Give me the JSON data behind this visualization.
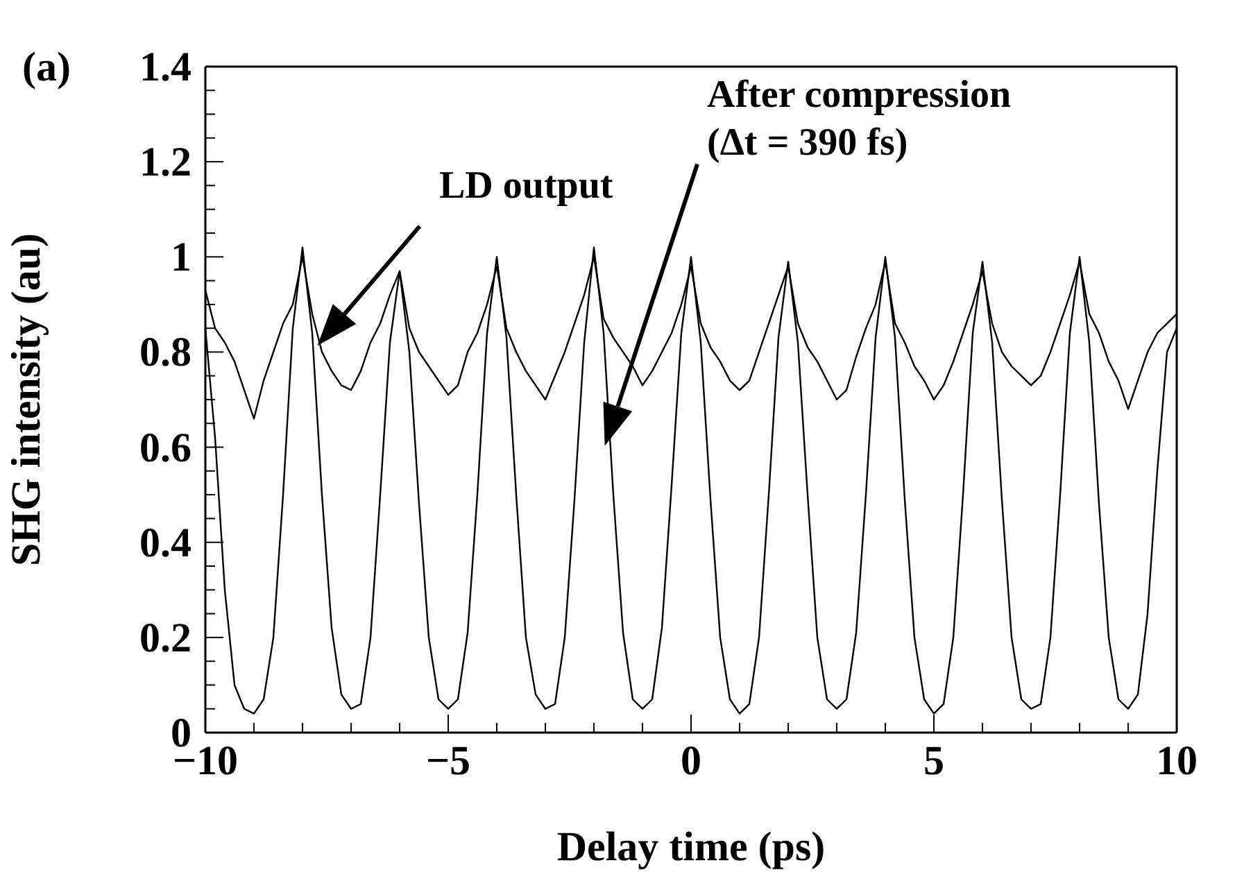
{
  "chart_data": {
    "type": "line",
    "title": "(a)",
    "xlabel": "Delay time (ps)",
    "ylabel": "SHG intensity (au)",
    "annotations": [
      "LD output",
      "After compression",
      "(Δt = 390 fs)"
    ],
    "x": [
      -10,
      -9.8,
      -9.6,
      -9.4,
      -9.2,
      -9,
      -8.8,
      -8.6,
      -8.4,
      -8.2,
      -8,
      -7.8,
      -7.6,
      -7.4,
      -7.2,
      -7,
      -6.8,
      -6.6,
      -6.4,
      -6.2,
      -6,
      -5.8,
      -5.6,
      -5.4,
      -5.2,
      -5,
      -4.8,
      -4.6,
      -4.4,
      -4.2,
      -4,
      -3.8,
      -3.6,
      -3.4,
      -3.2,
      -3,
      -2.8,
      -2.6,
      -2.4,
      -2.2,
      -2,
      -1.8,
      -1.6,
      -1.4,
      -1.2,
      -1,
      -0.8,
      -0.6,
      -0.4,
      -0.2,
      0,
      0.2,
      0.4,
      0.6,
      0.8,
      1,
      1.2,
      1.4,
      1.6,
      1.8,
      2,
      2.2,
      2.4,
      2.6,
      2.8,
      3,
      3.2,
      3.4,
      3.6,
      3.8,
      4,
      4.2,
      4.4,
      4.6,
      4.8,
      5,
      5.2,
      5.4,
      5.6,
      5.8,
      6,
      6.2,
      6.4,
      6.6,
      6.8,
      7,
      7.2,
      7.4,
      7.6,
      7.8,
      8,
      8.2,
      8.4,
      8.6,
      8.8,
      9,
      9.2,
      9.4,
      9.6,
      9.8,
      10
    ],
    "series": [
      {
        "color": "#000000",
        "values": [
          0.93,
          0.85,
          0.82,
          0.78,
          0.72,
          0.66,
          0.74,
          0.8,
          0.86,
          0.9,
          1.0,
          0.88,
          0.8,
          0.76,
          0.73,
          0.72,
          0.76,
          0.82,
          0.86,
          0.92,
          0.97,
          0.85,
          0.8,
          0.77,
          0.74,
          0.71,
          0.73,
          0.8,
          0.84,
          0.9,
          0.98,
          0.85,
          0.8,
          0.76,
          0.73,
          0.7,
          0.75,
          0.8,
          0.86,
          0.92,
          1.0,
          0.87,
          0.83,
          0.8,
          0.77,
          0.73,
          0.76,
          0.8,
          0.84,
          0.9,
          0.98,
          0.86,
          0.81,
          0.78,
          0.74,
          0.72,
          0.74,
          0.8,
          0.86,
          0.92,
          0.98,
          0.86,
          0.81,
          0.78,
          0.74,
          0.7,
          0.72,
          0.79,
          0.85,
          0.9,
          0.99,
          0.86,
          0.82,
          0.77,
          0.74,
          0.7,
          0.73,
          0.78,
          0.84,
          0.9,
          0.97,
          0.86,
          0.8,
          0.77,
          0.75,
          0.73,
          0.75,
          0.8,
          0.86,
          0.92,
          0.99,
          0.88,
          0.84,
          0.78,
          0.74,
          0.68,
          0.74,
          0.8,
          0.84,
          0.86,
          0.88
        ]
      },
      {
        "color": "#000000",
        "values": [
          0.85,
          0.62,
          0.3,
          0.1,
          0.05,
          0.04,
          0.07,
          0.2,
          0.5,
          0.85,
          1.02,
          0.84,
          0.5,
          0.22,
          0.08,
          0.05,
          0.06,
          0.2,
          0.5,
          0.82,
          0.97,
          0.8,
          0.48,
          0.2,
          0.07,
          0.05,
          0.07,
          0.21,
          0.5,
          0.84,
          1.0,
          0.83,
          0.5,
          0.2,
          0.08,
          0.05,
          0.06,
          0.2,
          0.49,
          0.82,
          1.02,
          0.84,
          0.5,
          0.21,
          0.07,
          0.05,
          0.07,
          0.22,
          0.52,
          0.84,
          1.0,
          0.82,
          0.49,
          0.2,
          0.07,
          0.04,
          0.06,
          0.2,
          0.5,
          0.83,
          0.99,
          0.82,
          0.5,
          0.2,
          0.07,
          0.05,
          0.07,
          0.21,
          0.5,
          0.83,
          1.0,
          0.83,
          0.49,
          0.2,
          0.07,
          0.04,
          0.06,
          0.2,
          0.5,
          0.84,
          0.99,
          0.82,
          0.49,
          0.2,
          0.07,
          0.05,
          0.06,
          0.2,
          0.5,
          0.84,
          1.0,
          0.82,
          0.48,
          0.2,
          0.07,
          0.05,
          0.08,
          0.25,
          0.55,
          0.8,
          0.85
        ]
      }
    ],
    "xlim": [
      -10,
      10
    ],
    "xticks": [
      {
        "value": -10,
        "label": "−10"
      },
      {
        "value": -9,
        "label": null
      },
      {
        "value": -8,
        "label": null
      },
      {
        "value": -7,
        "label": null
      },
      {
        "value": -6,
        "label": null
      },
      {
        "value": -5,
        "label": "−5"
      },
      {
        "value": -4,
        "label": null
      },
      {
        "value": -3,
        "label": null
      },
      {
        "value": -2,
        "label": null
      },
      {
        "value": -1,
        "label": null
      },
      0,
      {
        "value": 1,
        "label": null
      },
      {
        "value": 2,
        "label": null
      },
      {
        "value": 3,
        "label": null
      },
      {
        "value": 4,
        "label": null
      },
      5,
      {
        "value": 6,
        "label": null
      },
      {
        "value": 7,
        "label": null
      },
      {
        "value": 8,
        "label": null
      },
      {
        "value": 9,
        "label": null
      },
      10
    ],
    "ylim": [
      0,
      1.4
    ],
    "yticks": [
      0,
      {
        "value": 0.05,
        "label": null
      },
      {
        "value": 0.1,
        "label": null
      },
      {
        "value": 0.15,
        "label": null
      },
      0.2,
      {
        "value": 0.25,
        "label": null
      },
      {
        "value": 0.3,
        "label": null
      },
      {
        "value": 0.35,
        "label": null
      },
      0.4,
      {
        "value": 0.45,
        "label": null
      },
      {
        "value": 0.5,
        "label": null
      },
      {
        "value": 0.55,
        "label": null
      },
      0.6,
      {
        "value": 0.65,
        "label": null
      },
      {
        "value": 0.7,
        "label": null
      },
      {
        "value": 0.75,
        "label": null
      },
      0.8,
      {
        "value": 0.85,
        "label": null
      },
      {
        "value": 0.9,
        "label": null
      },
      {
        "value": 0.95,
        "label": null
      },
      1,
      {
        "value": 1.05,
        "label": null
      },
      {
        "value": 1.1,
        "label": null
      },
      {
        "value": 1.15,
        "label": null
      },
      1.2,
      {
        "value": 1.25,
        "label": null
      },
      {
        "value": 1.3,
        "label": null
      },
      {
        "value": 1.35,
        "label": null
      },
      1.4
    ],
    "grid": false,
    "legend": false,
    "marker": "none",
    "line_style": "solid"
  }
}
